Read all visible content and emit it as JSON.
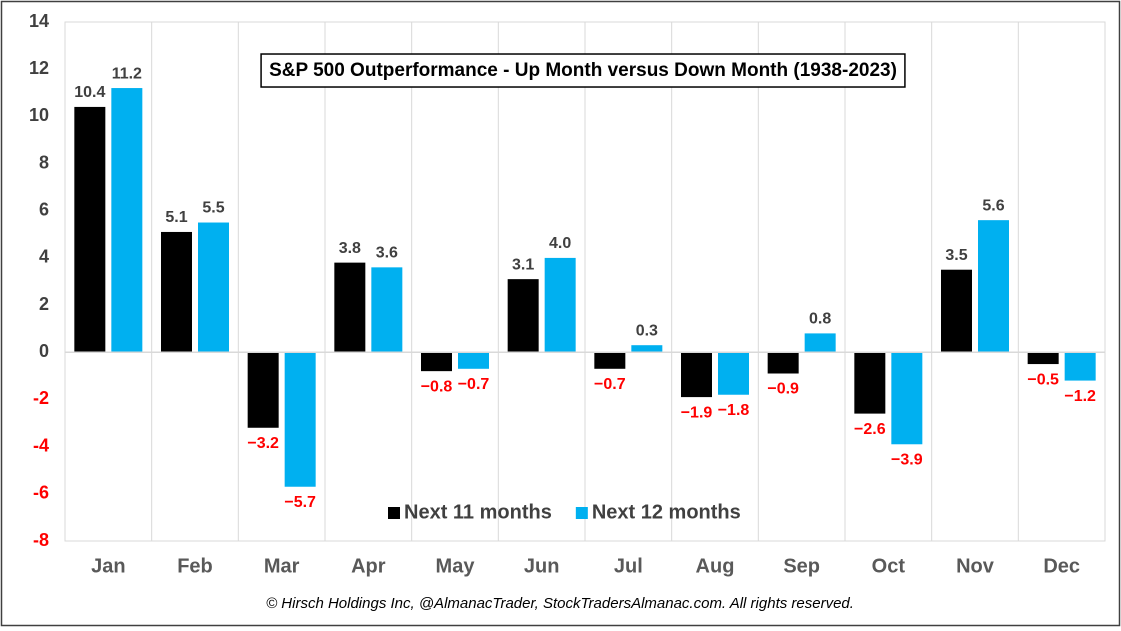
{
  "chart_data": {
    "type": "bar",
    "title": "S&P 500 Outperformance - Up Month versus Down Month (1938-2023)",
    "source": "© Hirsch Holdings Inc, @AlmanacTrader, StockTradersAlmanac.com. All rights reserved.",
    "categories": [
      "Jan",
      "Feb",
      "Mar",
      "Apr",
      "May",
      "Jun",
      "Jul",
      "Aug",
      "Sep",
      "Oct",
      "Nov",
      "Dec"
    ],
    "series": [
      {
        "name": "Next 11 months",
        "color": "#000000",
        "values": [
          10.4,
          5.1,
          -3.2,
          3.8,
          -0.8,
          3.1,
          -0.7,
          -1.9,
          -0.9,
          -2.6,
          3.5,
          -0.5
        ],
        "value_labels": [
          "10.4",
          "5.1",
          "−3.2",
          "3.8",
          "−0.8",
          "3.1",
          "−0.7",
          "−1.9",
          "−0.9",
          "−2.6",
          "3.5",
          "−0.5"
        ]
      },
      {
        "name": "Next 12 months",
        "color": "#00b0f0",
        "values": [
          11.2,
          5.5,
          -5.7,
          3.6,
          -0.7,
          4.0,
          0.3,
          -1.8,
          0.8,
          -3.9,
          5.6,
          -1.2
        ],
        "value_labels": [
          "11.2",
          "5.5",
          "−5.7",
          "3.6",
          "−0.7",
          "4.0",
          "0.3",
          "−1.8",
          "0.8",
          "−3.9",
          "5.6",
          "−1.2"
        ]
      }
    ],
    "ylim": [
      -8,
      14
    ],
    "yticks": [
      -8,
      -6,
      -4,
      -2,
      0,
      2,
      4,
      6,
      8,
      10,
      12,
      14
    ],
    "vertical_grid": true,
    "legend": "lower center",
    "negative_label_color": "#ff0000",
    "label_color": "#404040"
  }
}
